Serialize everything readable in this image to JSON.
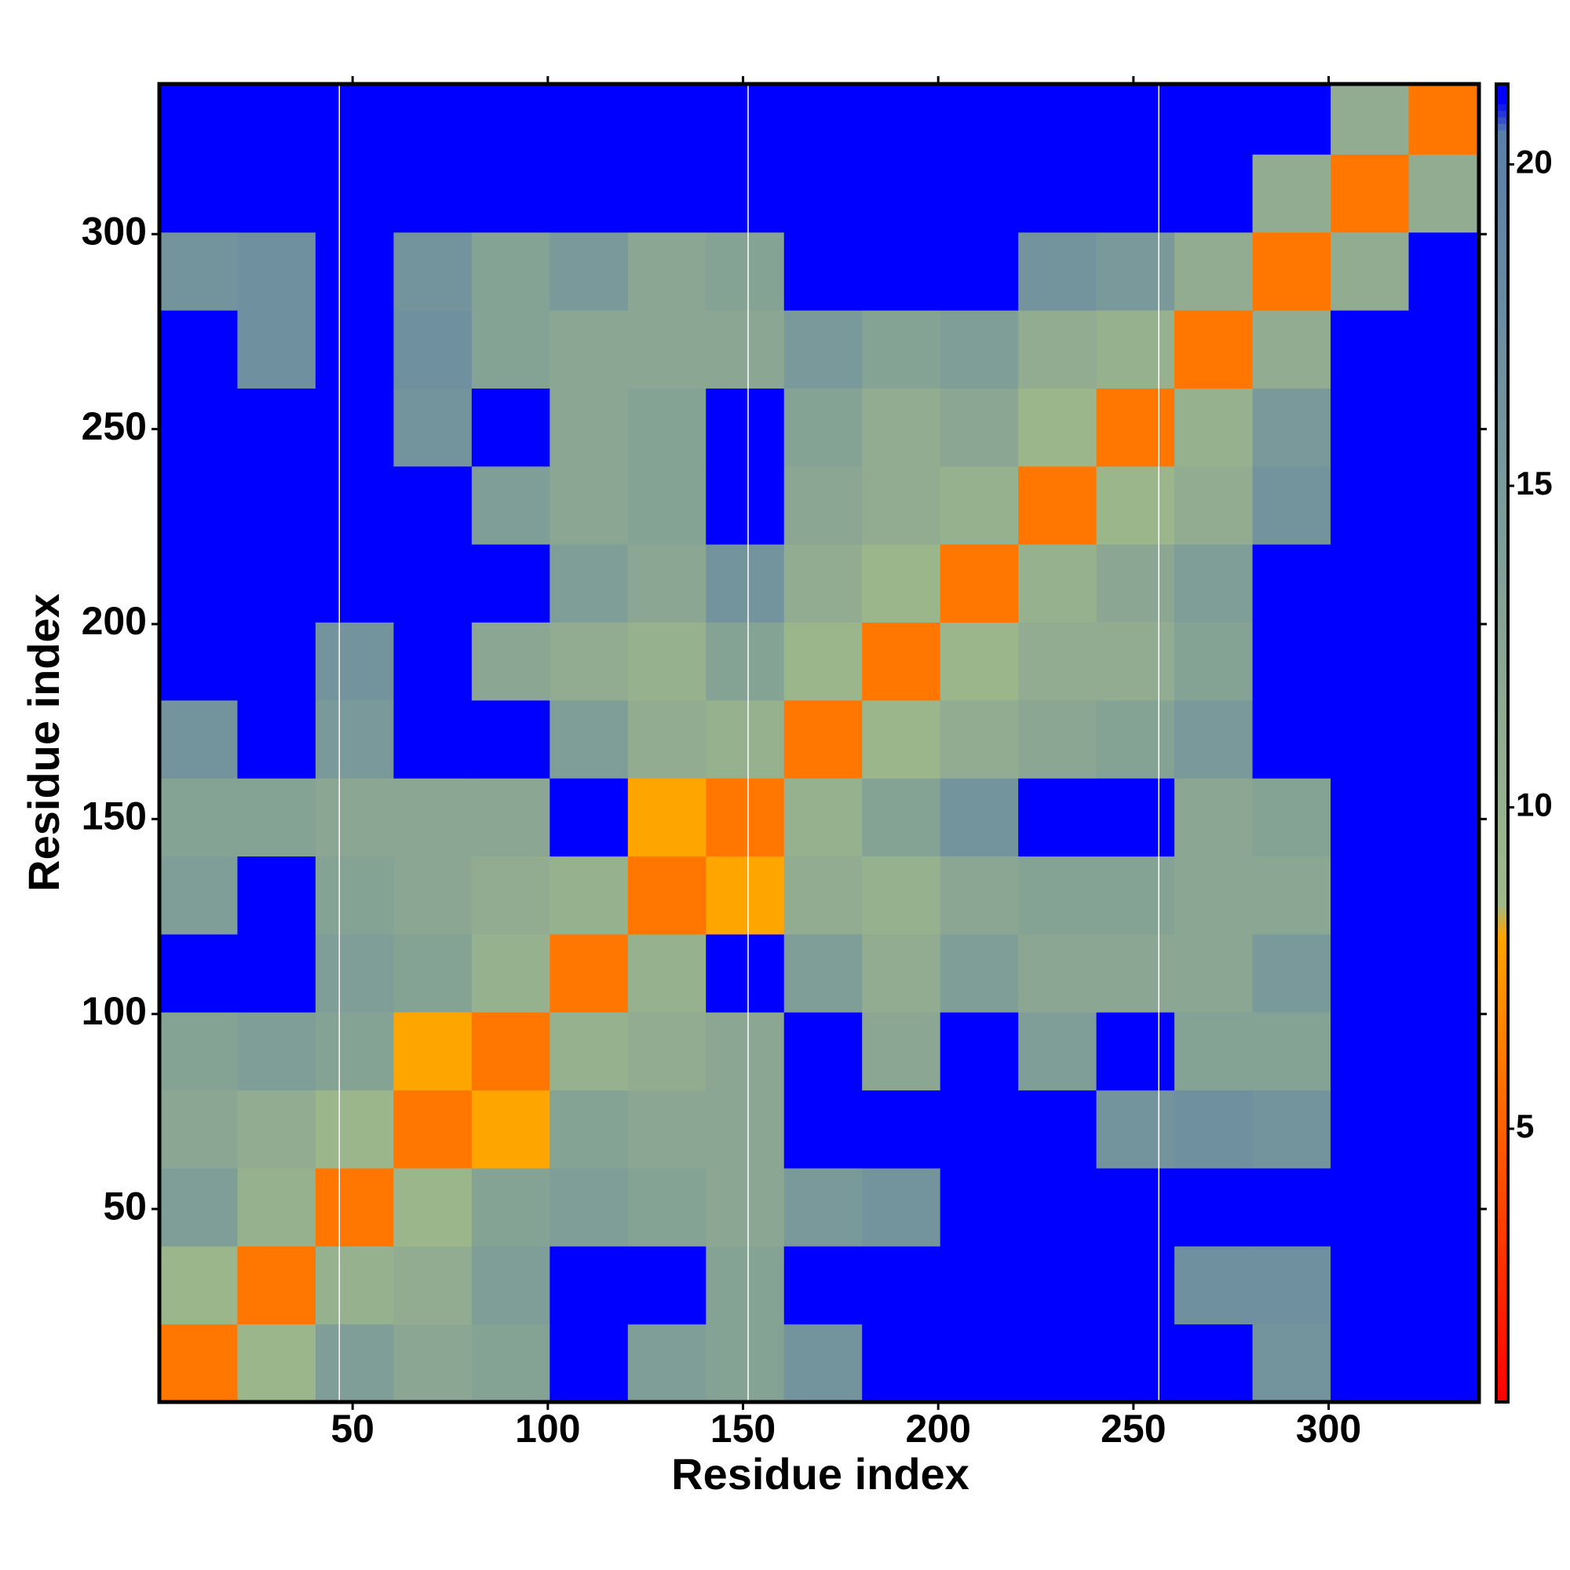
{
  "chart_data": {
    "type": "heatmap",
    "xlabel": "Residue index",
    "ylabel": "Residue index",
    "xlim": [
      0.5,
      338.5
    ],
    "ylim": [
      0.5,
      338.5
    ],
    "xticks": [
      50,
      100,
      150,
      200,
      250,
      300
    ],
    "yticks": [
      50,
      100,
      150,
      200,
      250,
      300
    ],
    "xbins": [
      0.5,
      20.5,
      40.5,
      60.5,
      80.5,
      100.5,
      120.5,
      140.5,
      160.5,
      180.5,
      200.5,
      220.5,
      240.5,
      260.5,
      280.5,
      300.5,
      320.5,
      338.5
    ],
    "ybins": [
      0.5,
      20.5,
      40.5,
      60.5,
      80.5,
      100.5,
      120.5,
      140.5,
      160.5,
      180.5,
      200.5,
      220.5,
      240.5,
      260.5,
      280.5,
      300.5,
      320.5,
      338.5
    ],
    "z": [
      [
        6,
        9,
        14,
        12,
        13,
        21,
        14,
        13,
        16,
        21,
        21,
        21,
        21,
        21,
        16,
        21,
        21
      ],
      [
        9,
        6,
        10,
        11,
        14,
        21,
        21,
        13,
        21,
        21,
        21,
        21,
        21,
        17,
        17,
        21,
        21
      ],
      [
        14,
        10,
        6,
        9,
        13,
        14,
        13,
        12,
        15,
        16,
        21,
        21,
        21,
        21,
        21,
        21,
        21
      ],
      [
        12,
        11,
        9,
        6,
        8,
        13,
        12,
        12,
        21,
        21,
        21,
        21,
        16,
        17,
        16,
        21,
        21
      ],
      [
        13,
        14,
        13,
        8,
        6,
        10,
        11,
        12,
        21,
        12,
        21,
        14,
        21,
        13,
        13,
        21,
        21
      ],
      [
        21,
        21,
        14,
        13,
        10,
        6,
        10,
        21,
        14,
        11,
        14,
        12,
        12,
        12,
        15,
        21,
        21
      ],
      [
        14,
        21,
        13,
        12,
        11,
        10,
        6,
        8,
        11,
        10,
        12,
        13,
        13,
        12,
        12,
        21,
        21
      ],
      [
        13,
        13,
        12,
        12,
        12,
        21,
        8,
        6,
        10,
        13,
        16,
        21,
        21,
        12,
        13,
        21,
        21
      ],
      [
        16,
        21,
        15,
        21,
        21,
        14,
        11,
        10,
        6,
        9,
        11,
        12,
        13,
        15,
        21,
        21,
        21
      ],
      [
        21,
        21,
        16,
        21,
        12,
        11,
        10,
        13,
        9,
        6,
        9,
        11,
        11,
        13,
        21,
        21,
        21
      ],
      [
        21,
        21,
        21,
        21,
        21,
        14,
        12,
        16,
        11,
        9,
        6,
        10,
        12,
        14,
        21,
        21,
        21
      ],
      [
        21,
        21,
        21,
        21,
        14,
        12,
        13,
        21,
        12,
        11,
        10,
        6,
        9,
        11,
        16,
        21,
        21
      ],
      [
        21,
        21,
        21,
        16,
        21,
        12,
        13,
        21,
        13,
        11,
        12,
        9,
        6,
        10,
        15,
        21,
        21
      ],
      [
        21,
        17,
        21,
        17,
        13,
        12,
        12,
        12,
        15,
        13,
        14,
        11,
        10,
        6,
        11,
        21,
        21
      ],
      [
        16,
        17,
        21,
        16,
        13,
        15,
        12,
        13,
        21,
        21,
        21,
        16,
        15,
        11,
        6,
        11,
        21
      ],
      [
        21,
        21,
        21,
        21,
        21,
        21,
        21,
        21,
        21,
        21,
        21,
        21,
        21,
        21,
        11,
        6,
        11
      ],
      [
        21,
        21,
        21,
        21,
        21,
        21,
        21,
        21,
        21,
        21,
        21,
        21,
        21,
        21,
        21,
        11,
        6
      ]
    ],
    "vlines": [
      46.6,
      151.3,
      256.5
    ],
    "zlim": [
      0.75,
      21.25
    ],
    "zticks": [
      5,
      10,
      15,
      20
    ],
    "colorscale": [
      [
        0.75,
        "#ff0000"
      ],
      [
        8,
        "#ffa500"
      ],
      [
        8.5,
        "#9fb88a"
      ],
      [
        20.5,
        "#5a7fa8"
      ],
      [
        21,
        "#0000ff"
      ]
    ]
  }
}
